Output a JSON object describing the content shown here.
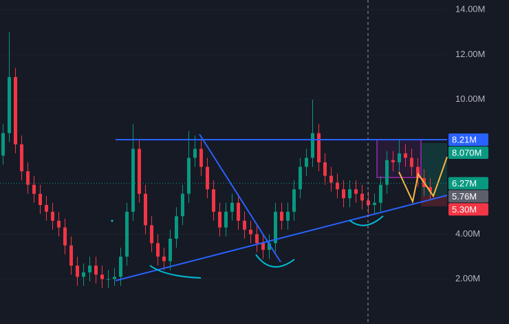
{
  "chart_data": {
    "type": "candlestick",
    "open": [
      7.5,
      8.5,
      11,
      8,
      6.8,
      6.2,
      5.8,
      5.3,
      5,
      4.6,
      4.3,
      3.5,
      2.6,
      2.1,
      2.3,
      2.6,
      2.2,
      2,
      2,
      2.1,
      3,
      5,
      7.8,
      5.8,
      4.4,
      3.6,
      3,
      2.8,
      3.8,
      4.8,
      5.8,
      7.4,
      7.8,
      7,
      6,
      5,
      4.3,
      5,
      5.4,
      4.6,
      4.2,
      4,
      3.6,
      3.3,
      3.6,
      5,
      4.6,
      5,
      6,
      7,
      7.4,
      8.5,
      7.2,
      6.6,
      6.3,
      6,
      5.6,
      6,
      5.8,
      5.5,
      5.3,
      5.4,
      6.2,
      7.3,
      7.2,
      7.6,
      7.4,
      7,
      6.5,
      6.1
    ],
    "high": [
      8.9,
      13,
      11.4,
      8.4,
      7.2,
      6.6,
      6.2,
      5.7,
      5.4,
      5,
      4.7,
      3.9,
      3,
      2.7,
      3,
      3,
      2.6,
      2.4,
      2.5,
      3.4,
      5.4,
      8.9,
      8.2,
      6.2,
      4.8,
      4,
      3.4,
      4.2,
      5.2,
      6.2,
      8.6,
      8.4,
      8.2,
      7.4,
      6.4,
      5.4,
      5.4,
      5.8,
      5.8,
      5,
      4.6,
      4.4,
      4,
      4,
      5.4,
      5.4,
      5.4,
      6.4,
      7.4,
      7.8,
      10,
      8.9,
      7.6,
      7,
      6.7,
      6.4,
      6.4,
      6.4,
      6.2,
      5.9,
      5.8,
      6.6,
      7.7,
      7.7,
      8.2,
      8,
      7.8,
      7.4,
      6.9,
      6.5
    ],
    "low": [
      7.1,
      8.1,
      7.6,
      6.4,
      5.8,
      5.4,
      4.9,
      4.6,
      4.2,
      3.9,
      3.1,
      2.2,
      1.7,
      1.7,
      1.9,
      1.8,
      1.6,
      1.6,
      1.7,
      1.7,
      2.6,
      4.6,
      5.4,
      4,
      3.2,
      2.6,
      2.4,
      2.4,
      3.4,
      4.4,
      5.4,
      7,
      6.6,
      5.6,
      4.6,
      3.9,
      3.9,
      4.6,
      4.2,
      3.8,
      3.6,
      3.2,
      2.9,
      2.9,
      3.2,
      4.2,
      4.2,
      4.6,
      5.6,
      6.6,
      7,
      6.8,
      6.2,
      5.9,
      5.6,
      5.2,
      5.2,
      5.4,
      5.1,
      4.9,
      4.9,
      5,
      5.8,
      6.8,
      6.8,
      7,
      6.6,
      6.1,
      5.7,
      5.5
    ],
    "close": [
      8.5,
      11,
      8,
      6.8,
      6.2,
      5.8,
      5.3,
      5,
      4.6,
      4.3,
      3.5,
      2.6,
      2.1,
      2.3,
      2.6,
      2.2,
      2,
      2,
      2.1,
      3,
      5,
      7.8,
      5.8,
      4.4,
      3.6,
      3,
      2.8,
      3.8,
      4.8,
      5.8,
      7.4,
      7.8,
      7,
      6,
      5,
      4.3,
      5,
      5.4,
      4.6,
      4.2,
      4,
      3.6,
      3.3,
      3.6,
      5,
      4.6,
      5,
      6,
      7,
      7.4,
      8.5,
      7.2,
      6.6,
      6.3,
      6,
      5.6,
      6,
      5.8,
      5.5,
      5.3,
      5.4,
      6.2,
      7.3,
      7.2,
      7.6,
      7.4,
      7,
      6.5,
      6.1,
      5.9
    ],
    "up_color": "#089981",
    "down_color": "#f23645",
    "ylim": [
      0,
      14.43
    ],
    "yticks": [
      {
        "value": 2,
        "label": "2.00M"
      },
      {
        "value": 4,
        "label": "4.00M"
      },
      {
        "value": 10,
        "label": "10.00M"
      },
      {
        "value": 12,
        "label": "12.00M"
      },
      {
        "value": 14,
        "label": "14.00M"
      }
    ],
    "grid": true,
    "price_labels": [
      {
        "value": 8.21,
        "label": "8.21M",
        "color": "#2962ff"
      },
      {
        "value": 8.07,
        "label": "8.070M",
        "color": "#089981"
      },
      {
        "value": 6.27,
        "label": "6.27M",
        "color": "#089981"
      },
      {
        "value": 5.76,
        "label": "5.76M",
        "color": "#5d606b"
      },
      {
        "value": 5.3,
        "label": "5.30M",
        "color": "#f23645"
      }
    ]
  }
}
